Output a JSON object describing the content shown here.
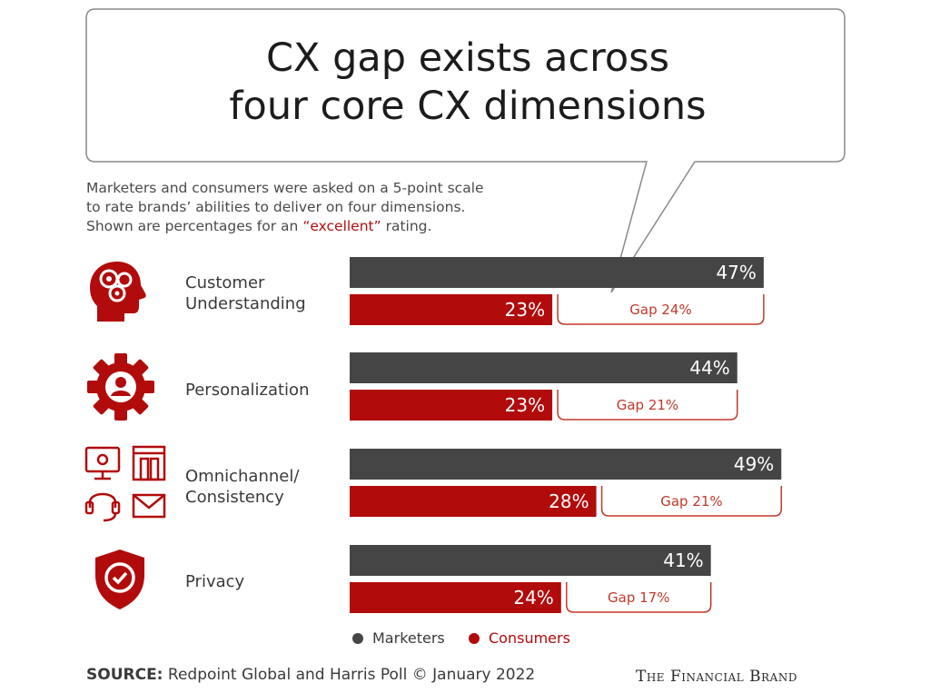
{
  "title": {
    "line1": "CX gap exists across",
    "line2": "four core CX dimensions"
  },
  "subtitle": {
    "line1": "Marketers and consumers were asked on a 5-point scale",
    "line2": "to rate brands’ abilities to deliver on four dimensions.",
    "line3_before": "Shown are percentages for an ",
    "line3_highlight": "“excellent”",
    "line3_after": " rating."
  },
  "categories": [
    {
      "line1": "Customer",
      "line2": "Understanding",
      "icon": "head-gears-icon"
    },
    {
      "line1": "Personalization",
      "line2": "",
      "icon": "gear-person-icon"
    },
    {
      "line1": "Omnichannel/",
      "line2": "Consistency",
      "icon": "omnichannel-icons"
    },
    {
      "line1": "Privacy",
      "line2": "",
      "icon": "shield-check-icon"
    }
  ],
  "legend": {
    "marketers": "Marketers",
    "consumers": "Consumers"
  },
  "source": {
    "label": "SOURCE:",
    "text": "Redpoint Global and Harris Poll © January 2022"
  },
  "brand": "The Financial Brand",
  "colors": {
    "marketers": "#454545",
    "consumers": "#b10b0b",
    "accent": "#c0392b"
  },
  "chart_data": {
    "type": "bar",
    "orientation": "horizontal",
    "categories": [
      "Customer Understanding",
      "Personalization",
      "Omnichannel/ Consistency",
      "Privacy"
    ],
    "series": [
      {
        "name": "Marketers",
        "values": [
          47,
          44,
          49,
          41
        ],
        "labels": [
          "47%",
          "44%",
          "49%",
          "41%"
        ]
      },
      {
        "name": "Consumers",
        "values": [
          23,
          23,
          28,
          24
        ],
        "labels": [
          "23%",
          "23%",
          "28%",
          "24%"
        ]
      }
    ],
    "gaps": [
      "Gap 24%",
      "Gap 21%",
      "Gap 21%",
      "Gap 17%"
    ],
    "unit": "%",
    "grid": false,
    "legend_position": "bottom"
  }
}
